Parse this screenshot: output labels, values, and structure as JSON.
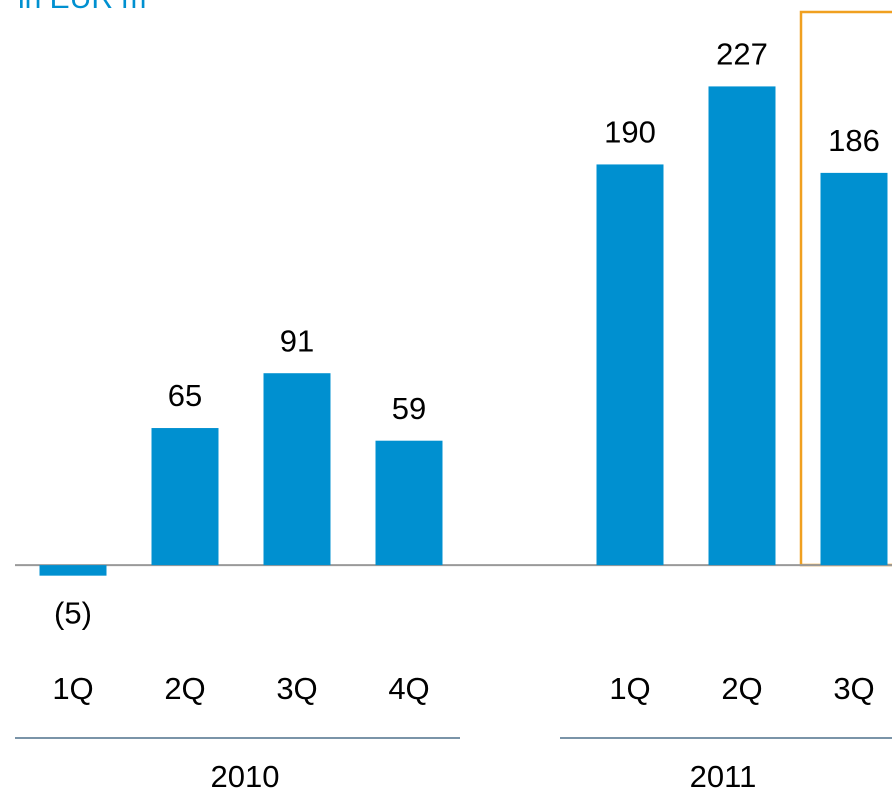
{
  "chart_data": {
    "type": "bar",
    "title": "in EUR m",
    "color": "#0090d0",
    "ylim": [
      -100,
      240
    ],
    "groups": [
      {
        "name": "2010",
        "categories": [
          "1Q",
          "2Q",
          "3Q",
          "4Q"
        ],
        "values": [
          -5,
          65,
          91,
          59
        ],
        "value_labels": [
          "(5)",
          "65",
          "91",
          "59"
        ]
      },
      {
        "name": "2011",
        "categories": [
          "1Q",
          "2Q",
          "3Q"
        ],
        "values": [
          190,
          227,
          186
        ],
        "value_labels": [
          "190",
          "227",
          "186"
        ]
      }
    ]
  }
}
